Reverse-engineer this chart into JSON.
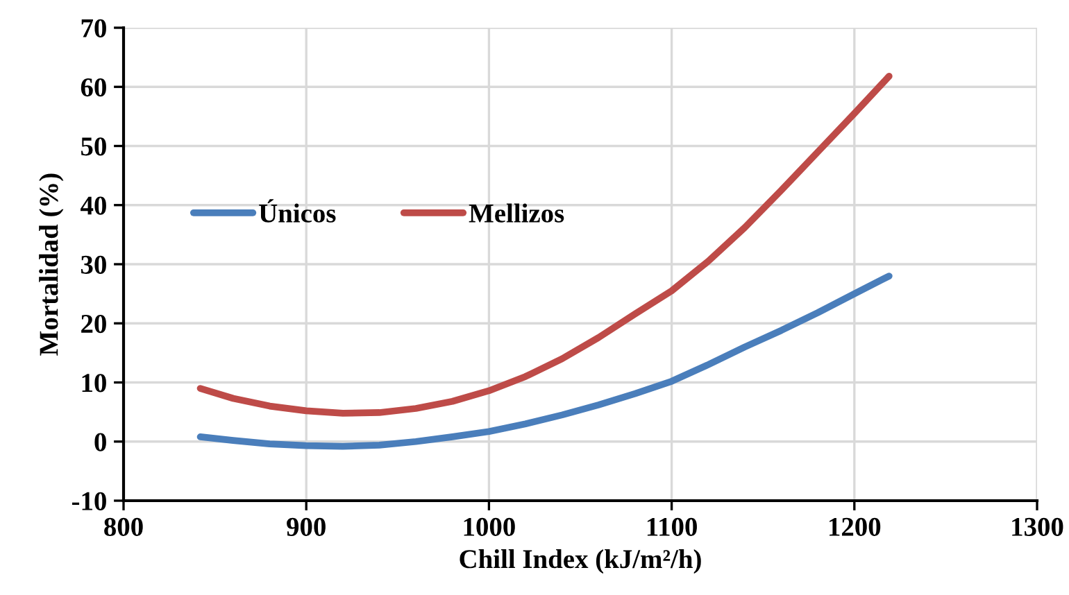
{
  "chart_data": {
    "type": "line",
    "xlabel": "Chill Index (kJ/m²/h)",
    "ylabel": "Mortalidad (%)",
    "xlim": [
      800,
      1300
    ],
    "xticks": [
      800,
      900,
      1000,
      1100,
      1200,
      1300
    ],
    "ylim": [
      -10,
      70
    ],
    "yticks": [
      -10,
      0,
      10,
      20,
      30,
      40,
      50,
      60,
      70
    ],
    "grid": true,
    "legend": "top left",
    "marker": "none",
    "line_style": "solid",
    "x": [
      842,
      860,
      880,
      900,
      920,
      940,
      960,
      980,
      1000,
      1020,
      1040,
      1060,
      1080,
      1100,
      1120,
      1140,
      1160,
      1180,
      1200,
      1219
    ],
    "series": [
      {
        "name": "Únicos",
        "color": "#4a7ebb",
        "values": [
          0.8,
          0.2,
          -0.4,
          -0.7,
          -0.8,
          -0.6,
          0,
          0.8,
          1.7,
          3,
          4.5,
          6.2,
          8.1,
          10.2,
          13,
          16,
          18.8,
          21.8,
          25,
          28
        ]
      },
      {
        "name": "Mellizos",
        "color": "#be4b48",
        "values": [
          9,
          7.3,
          6,
          5.2,
          4.8,
          4.9,
          5.6,
          6.8,
          8.6,
          11,
          14,
          17.6,
          21.6,
          25.5,
          30.5,
          36.2,
          42.5,
          49,
          55.5,
          61.8
        ]
      }
    ]
  }
}
